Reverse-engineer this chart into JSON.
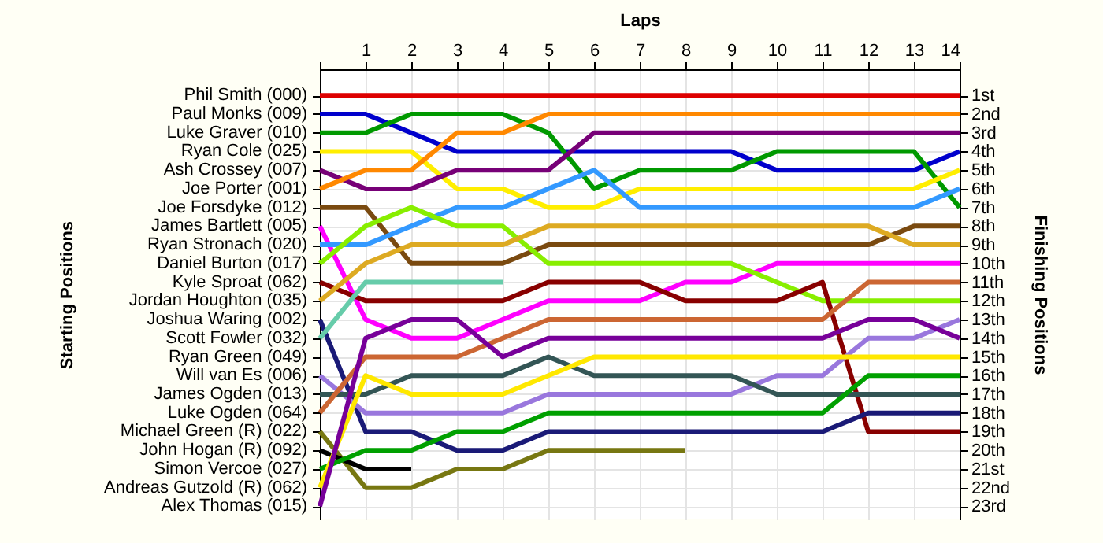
{
  "chart_data": {
    "type": "line",
    "xlabel": "Laps",
    "ylabel": "Finishing Positions",
    "x": [
      0,
      1,
      2,
      3,
      4,
      5,
      6,
      7,
      8,
      9,
      10,
      11,
      12,
      13,
      14
    ],
    "xlim": [
      0,
      14
    ],
    "xticks": [
      {
        "value": 0,
        "label": null
      },
      1,
      2,
      3,
      4,
      5,
      6,
      7,
      8,
      9,
      10,
      11,
      12,
      13,
      14
    ],
    "ylim": [
      23.7,
      -0.4
    ],
    "yticks": [
      {
        "value": 1,
        "label": "1st"
      },
      {
        "value": 2,
        "label": "2nd"
      },
      {
        "value": 3,
        "label": "3rd"
      },
      {
        "value": 4,
        "label": "4th"
      },
      {
        "value": 5,
        "label": "5th"
      },
      {
        "value": 6,
        "label": "6th"
      },
      {
        "value": 7,
        "label": "7th"
      },
      {
        "value": 8,
        "label": "8th"
      },
      {
        "value": 9,
        "label": "9th"
      },
      {
        "value": 10,
        "label": "10th"
      },
      {
        "value": 11,
        "label": "11th"
      },
      {
        "value": 12,
        "label": "12th"
      },
      {
        "value": 13,
        "label": "13th"
      },
      {
        "value": 14,
        "label": "14th"
      },
      {
        "value": 15,
        "label": "15th"
      },
      {
        "value": 16,
        "label": "16th"
      },
      {
        "value": 17,
        "label": "17th"
      },
      {
        "value": 18,
        "label": "18th"
      },
      {
        "value": 19,
        "label": "19th"
      },
      {
        "value": 20,
        "label": "20th"
      },
      {
        "value": 21,
        "label": "21st"
      },
      {
        "value": 22,
        "label": "22nd"
      },
      {
        "value": 23,
        "label": "23rd"
      }
    ],
    "annotations": [
      "Starting Positions",
      "Phil Smith (000)",
      "Paul Monks (009)",
      "Luke Graver (010)",
      "Ryan Cole (025)",
      "Ash Crossey (007)",
      "Joe Porter (001)",
      "Joe Forsdyke (012)",
      "James Bartlett (005)",
      "Ryan Stronach (020)",
      "Daniel Burton (017)",
      "Kyle Sproat (062)",
      "Jordan Houghton (035)",
      "Joshua Waring (002)",
      "Scott Fowler (032)",
      "Ryan Green (049)",
      "Will van Es (006)",
      "James Ogden (013)",
      "Luke Ogden (064)",
      "Michael Green (R) (022)",
      "John Hogan (R) (092)",
      "Simon Vercoe (027)",
      "Andreas Gutzold (R) (062)",
      "Alex Thomas (015)"
    ],
    "grid": true,
    "line_style": "solid",
    "series": [
      {
        "color": "#dd0000",
        "values": [
          1,
          1,
          1,
          1,
          1,
          1,
          1,
          1,
          1,
          1,
          1,
          1,
          1,
          1,
          1
        ]
      },
      {
        "color": "#0000cc",
        "values": [
          2,
          2,
          3,
          4,
          4,
          4,
          4,
          4,
          4,
          4,
          5,
          5,
          5,
          5,
          4
        ]
      },
      {
        "color": "#009900",
        "values": [
          3,
          3,
          2,
          2,
          2,
          3,
          6,
          5,
          5,
          5,
          4,
          4,
          4,
          4,
          7
        ]
      },
      {
        "color": "#ffee00",
        "values": [
          4,
          4,
          4,
          6,
          6,
          7,
          7,
          6,
          6,
          6,
          6,
          6,
          6,
          6,
          5
        ]
      },
      {
        "color": "#770077",
        "values": [
          5,
          6,
          6,
          5,
          5,
          5,
          3,
          3,
          3,
          3,
          3,
          3,
          3,
          3,
          3
        ]
      },
      {
        "color": "#ff8800",
        "values": [
          6,
          5,
          5,
          3,
          3,
          2,
          2,
          2,
          2,
          2,
          2,
          2,
          2,
          2,
          2
        ]
      },
      {
        "color": "#7a4a10",
        "values": [
          7,
          7,
          10,
          10,
          10,
          9,
          9,
          9,
          9,
          9,
          9,
          9,
          9,
          8,
          8
        ]
      },
      {
        "color": "#ff00ff",
        "values": [
          8,
          13,
          14,
          14,
          13,
          12,
          12,
          12,
          11,
          11,
          10,
          10,
          10,
          10,
          10
        ]
      },
      {
        "color": "#3399ff",
        "values": [
          9,
          9,
          8,
          7,
          7,
          6,
          5,
          7,
          7,
          7,
          7,
          7,
          7,
          7,
          6
        ]
      },
      {
        "color": "#88ee00",
        "values": [
          10,
          8,
          7,
          8,
          8,
          10,
          10,
          10,
          10,
          10,
          11,
          12,
          12,
          12,
          12
        ]
      },
      {
        "color": "#880000",
        "values": [
          11,
          12,
          12,
          12,
          12,
          11,
          11,
          11,
          12,
          12,
          12,
          11,
          19,
          19,
          19
        ]
      },
      {
        "color": "#ddaa22",
        "values": [
          12,
          10,
          9,
          9,
          9,
          8,
          8,
          8,
          8,
          8,
          8,
          8,
          8,
          9,
          9
        ]
      },
      {
        "color": "#1a1a77",
        "values": [
          13,
          19,
          19,
          20,
          20,
          19,
          19,
          19,
          19,
          19,
          19,
          19,
          18,
          18,
          18
        ]
      },
      {
        "color": "#66ccaa",
        "values": [
          14,
          11,
          11,
          11,
          11,
          null,
          null,
          null,
          null,
          null,
          null,
          null,
          null,
          null,
          null
        ]
      },
      {
        "color": "#9977dd",
        "values": [
          16,
          18,
          18,
          18,
          18,
          17,
          17,
          17,
          17,
          17,
          16,
          16,
          14,
          14,
          13
        ]
      },
      {
        "color": "#335555",
        "values": [
          17,
          17,
          16,
          16,
          16,
          15,
          16,
          16,
          16,
          16,
          17,
          17,
          17,
          17,
          17
        ]
      },
      {
        "color": "#cc6633",
        "values": [
          18,
          15,
          15,
          15,
          14,
          13,
          13,
          13,
          13,
          13,
          13,
          13,
          11,
          11,
          11
        ]
      },
      {
        "color": "#777711",
        "values": [
          19,
          22,
          22,
          21,
          21,
          20,
          20,
          20,
          20,
          null,
          null,
          null,
          null,
          null,
          null
        ]
      },
      {
        "color": "#000000",
        "values": [
          20,
          21,
          21,
          null,
          null,
          null,
          null,
          null,
          null,
          null,
          null,
          null,
          null,
          null,
          null
        ]
      },
      {
        "color": "#00a000",
        "values": [
          21,
          20,
          20,
          19,
          19,
          18,
          18,
          18,
          18,
          18,
          18,
          18,
          16,
          16,
          16
        ]
      },
      {
        "color": "#ffe800",
        "values": [
          22,
          16,
          17,
          17,
          17,
          16,
          15,
          15,
          15,
          15,
          15,
          15,
          15,
          15,
          15
        ]
      },
      {
        "color": "#770099",
        "values": [
          23,
          14,
          13,
          13,
          15,
          14,
          14,
          14,
          14,
          14,
          14,
          14,
          13,
          13,
          14
        ]
      }
    ]
  }
}
